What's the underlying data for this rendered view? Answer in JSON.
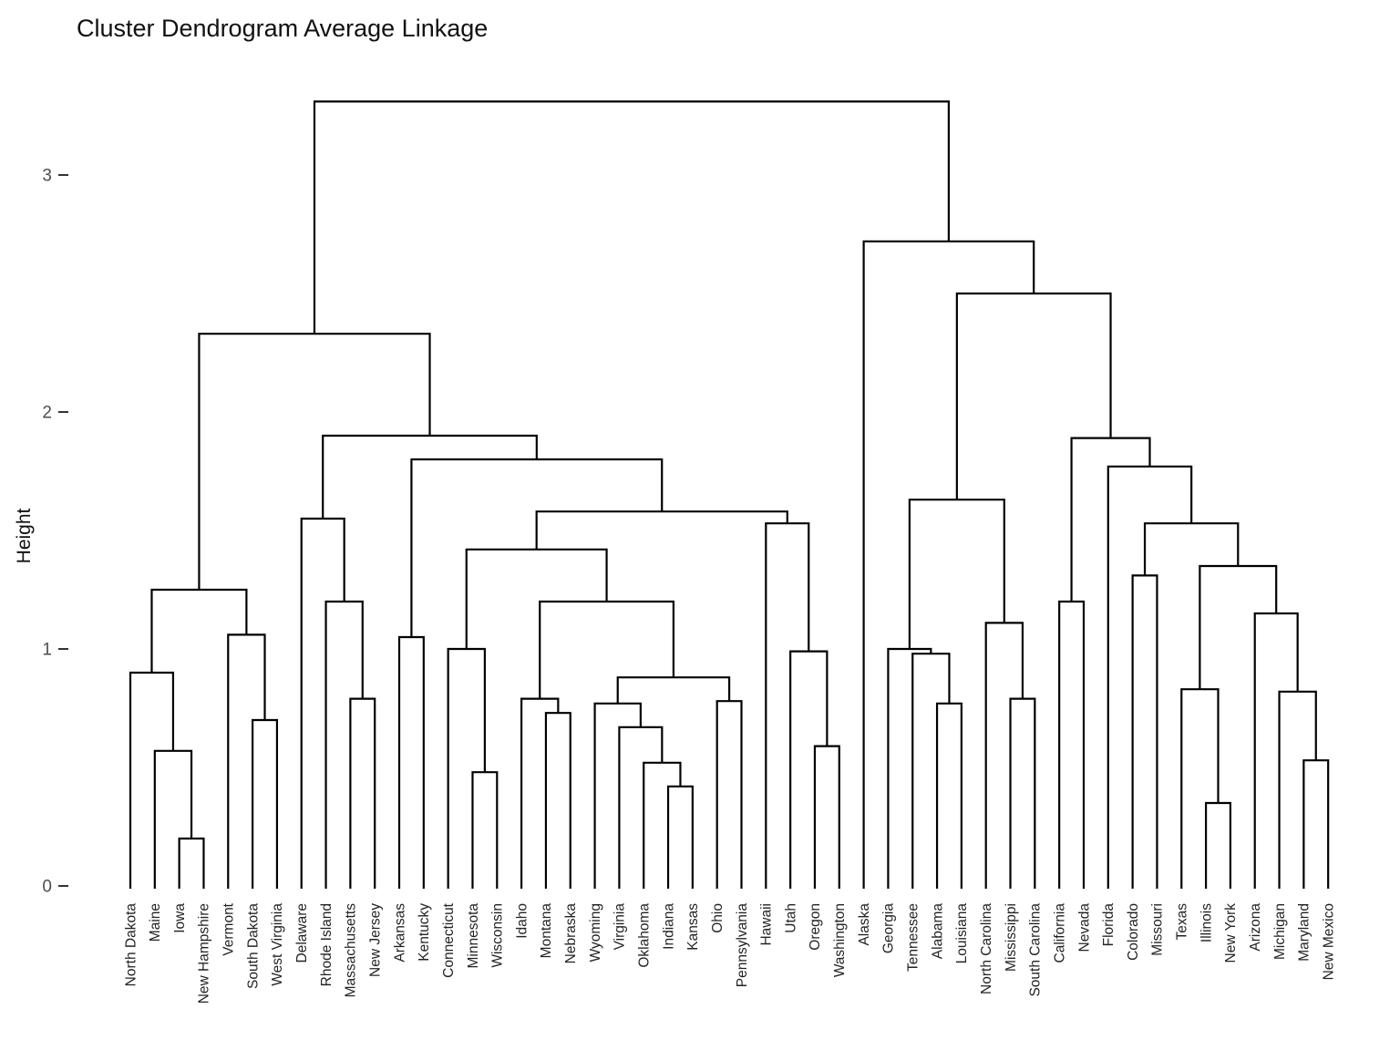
{
  "chart_data": {
    "type": "dendrogram",
    "title": "Cluster Dendrogram Average Linkage",
    "ylabel": "Height",
    "linkage_method": "average",
    "yticks": [
      0,
      1,
      2,
      3
    ],
    "ylim": [
      0,
      3.45
    ],
    "grid": false,
    "legend": false,
    "leaf_order": [
      "North Dakota",
      "Maine",
      "Iowa",
      "New Hampshire",
      "Vermont",
      "South Dakota",
      "West Virginia",
      "Delaware",
      "Rhode Island",
      "Massachusetts",
      "New Jersey",
      "Arkansas",
      "Kentucky",
      "Connecticut",
      "Minnesota",
      "Wisconsin",
      "Idaho",
      "Montana",
      "Nebraska",
      "Wyoming",
      "Virginia",
      "Oklahoma",
      "Indiana",
      "Kansas",
      "Ohio",
      "Pennsylvania",
      "Hawaii",
      "Utah",
      "Oregon",
      "Washington",
      "Alaska",
      "Georgia",
      "Tennessee",
      "Alabama",
      "Louisiana",
      "North Carolina",
      "Mississippi",
      "South Carolina",
      "California",
      "Nevada",
      "Florida",
      "Colorado",
      "Missouri",
      "Texas",
      "Illinois",
      "New York",
      "Arizona",
      "Michigan",
      "Maryland",
      "New Mexico"
    ],
    "tree": {
      "h": 3.31,
      "c": [
        {
          "h": 2.33,
          "c": [
            {
              "h": 1.25,
              "c": [
                {
                  "h": 0.9,
                  "c": [
                    "North Dakota",
                    {
                      "h": 0.57,
                      "c": [
                        "Maine",
                        {
                          "h": 0.2,
                          "c": [
                            "Iowa",
                            "New Hampshire"
                          ]
                        }
                      ]
                    }
                  ]
                },
                {
                  "h": 1.06,
                  "c": [
                    "Vermont",
                    {
                      "h": 0.7,
                      "c": [
                        "South Dakota",
                        "West Virginia"
                      ]
                    }
                  ]
                }
              ]
            },
            {
              "h": 1.9,
              "c": [
                {
                  "h": 1.55,
                  "c": [
                    "Delaware",
                    {
                      "h": 1.2,
                      "c": [
                        "Rhode Island",
                        {
                          "h": 0.79,
                          "c": [
                            "Massachusetts",
                            "New Jersey"
                          ]
                        }
                      ]
                    }
                  ]
                },
                {
                  "h": 1.8,
                  "c": [
                    {
                      "h": 1.05,
                      "c": [
                        "Arkansas",
                        "Kentucky"
                      ]
                    },
                    {
                      "h": 1.58,
                      "c": [
                        {
                          "h": 1.42,
                          "c": [
                            {
                              "h": 1.0,
                              "c": [
                                "Connecticut",
                                {
                                  "h": 0.48,
                                  "c": [
                                    "Minnesota",
                                    "Wisconsin"
                                  ]
                                }
                              ]
                            },
                            {
                              "h": 1.2,
                              "c": [
                                {
                                  "h": 0.79,
                                  "c": [
                                    "Idaho",
                                    {
                                      "h": 0.73,
                                      "c": [
                                        "Montana",
                                        "Nebraska"
                                      ]
                                    }
                                  ]
                                },
                                {
                                  "h": 0.88,
                                  "c": [
                                    {
                                      "h": 0.77,
                                      "c": [
                                        "Wyoming",
                                        {
                                          "h": 0.67,
                                          "c": [
                                            "Virginia",
                                            {
                                              "h": 0.52,
                                              "c": [
                                                "Oklahoma",
                                                {
                                                  "h": 0.42,
                                                  "c": [
                                                    "Indiana",
                                                    "Kansas"
                                                  ]
                                                }
                                              ]
                                            }
                                          ]
                                        }
                                      ]
                                    },
                                    {
                                      "h": 0.78,
                                      "c": [
                                        "Ohio",
                                        "Pennsylvania"
                                      ]
                                    }
                                  ]
                                }
                              ]
                            }
                          ]
                        },
                        {
                          "h": 1.53,
                          "c": [
                            "Hawaii",
                            {
                              "h": 0.99,
                              "c": [
                                "Utah",
                                {
                                  "h": 0.59,
                                  "c": [
                                    "Oregon",
                                    "Washington"
                                  ]
                                }
                              ]
                            }
                          ]
                        }
                      ]
                    }
                  ]
                }
              ]
            }
          ]
        },
        {
          "h": 2.72,
          "c": [
            "Alaska",
            {
              "h": 2.5,
              "c": [
                {
                  "h": 1.63,
                  "c": [
                    {
                      "h": 1.0,
                      "c": [
                        "Georgia",
                        {
                          "h": 0.98,
                          "c": [
                            "Tennessee",
                            {
                              "h": 0.77,
                              "c": [
                                "Alabama",
                                "Louisiana"
                              ]
                            }
                          ]
                        }
                      ]
                    },
                    {
                      "h": 1.11,
                      "c": [
                        "North Carolina",
                        {
                          "h": 0.79,
                          "c": [
                            "Mississippi",
                            "South Carolina"
                          ]
                        }
                      ]
                    }
                  ]
                },
                {
                  "h": 1.89,
                  "c": [
                    {
                      "h": 1.2,
                      "c": [
                        "California",
                        "Nevada"
                      ]
                    },
                    {
                      "h": 1.77,
                      "c": [
                        "Florida",
                        {
                          "h": 1.53,
                          "c": [
                            {
                              "h": 1.31,
                              "c": [
                                "Colorado",
                                "Missouri"
                              ]
                            },
                            {
                              "h": 1.35,
                              "c": [
                                {
                                  "h": 0.83,
                                  "c": [
                                    "Texas",
                                    {
                                      "h": 0.35,
                                      "c": [
                                        "Illinois",
                                        "New York"
                                      ]
                                    }
                                  ]
                                },
                                {
                                  "h": 1.15,
                                  "c": [
                                    "Arizona",
                                    {
                                      "h": 0.82,
                                      "c": [
                                        "Michigan",
                                        {
                                          "h": 0.53,
                                          "c": [
                                            "Maryland",
                                            "New Mexico"
                                          ]
                                        }
                                      ]
                                    }
                                  ]
                                }
                              ]
                            }
                          ]
                        }
                      ]
                    }
                  ]
                }
              ]
            }
          ]
        }
      ]
    },
    "colors": {
      "link": "#000000",
      "title_text": "#111111",
      "axis_text": "#4d4d4d",
      "leaf_label_text": "#222222",
      "tick_mark": "#333333",
      "background": "#ffffff"
    }
  }
}
